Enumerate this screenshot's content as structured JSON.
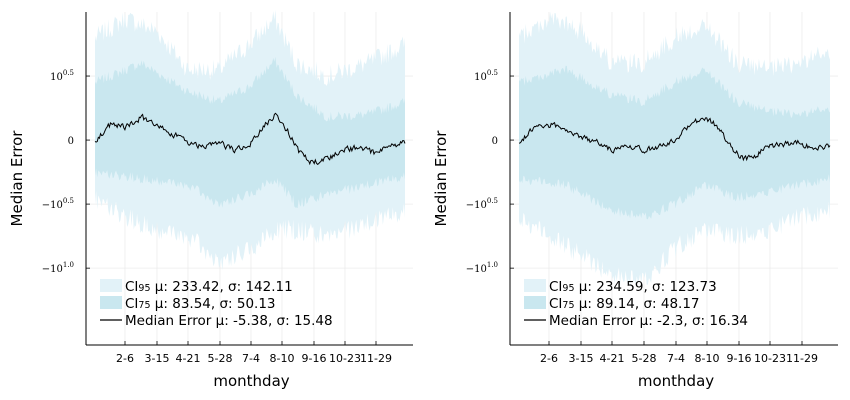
{
  "chart_data": [
    {
      "type": "area",
      "xlabel": "monthday",
      "ylabel": "Median Error",
      "y_scale": "symlog",
      "ylim": [
        -1.6,
        1.0
      ],
      "y_ticks": [
        {
          "value": 0.5,
          "base": "10",
          "exp": "0.5",
          "prefix": ""
        },
        {
          "value": 0,
          "base": "0",
          "exp": "",
          "prefix": ""
        },
        {
          "value": -0.5,
          "base": "10",
          "exp": "0.5",
          "prefix": "−"
        },
        {
          "value": -1.0,
          "base": "10",
          "exp": "1.0",
          "prefix": "−"
        }
      ],
      "x_ticks": [
        "2-6",
        "3-15",
        "4-21",
        "5-28",
        "7-4",
        "8-10",
        "9-16",
        "10-23",
        "11-29"
      ],
      "grid": true,
      "legend_position": "bottom-left",
      "series": [
        {
          "name": "CI",
          "sub": "95",
          "stats": " μ: 233.42, σ: 142.11",
          "color": "#e2f2f8"
        },
        {
          "name": "CI",
          "sub": "75",
          "stats": " μ: 83.54, σ: 50.13",
          "color": "#c9e7ef"
        },
        {
          "name": "Median Error",
          "sub": "",
          "stats": " μ: -5.38, σ: 15.48",
          "color": "#000000"
        }
      ],
      "median_keyframes": [
        [
          0,
          0.0
        ],
        [
          0.05,
          0.12
        ],
        [
          0.1,
          0.1
        ],
        [
          0.15,
          0.18
        ],
        [
          0.2,
          0.1
        ],
        [
          0.25,
          0.05
        ],
        [
          0.3,
          -0.02
        ],
        [
          0.35,
          -0.06
        ],
        [
          0.4,
          -0.02
        ],
        [
          0.45,
          -0.08
        ],
        [
          0.5,
          -0.03
        ],
        [
          0.55,
          0.12
        ],
        [
          0.58,
          0.2
        ],
        [
          0.62,
          0.08
        ],
        [
          0.66,
          -0.1
        ],
        [
          0.7,
          -0.18
        ],
        [
          0.75,
          -0.14
        ],
        [
          0.8,
          -0.08
        ],
        [
          0.85,
          -0.06
        ],
        [
          0.9,
          -0.1
        ],
        [
          0.95,
          -0.05
        ],
        [
          1.0,
          -0.02
        ]
      ],
      "ci75_keyframes": [
        [
          0,
          0.45,
          -0.25
        ],
        [
          0.15,
          0.6,
          -0.3
        ],
        [
          0.3,
          0.38,
          -0.35
        ],
        [
          0.4,
          0.3,
          -0.5
        ],
        [
          0.5,
          0.42,
          -0.42
        ],
        [
          0.58,
          0.62,
          -0.3
        ],
        [
          0.65,
          0.35,
          -0.5
        ],
        [
          0.75,
          0.18,
          -0.42
        ],
        [
          0.88,
          0.2,
          -0.35
        ],
        [
          1.0,
          0.3,
          -0.28
        ]
      ],
      "ci95_keyframes": [
        [
          0,
          0.8,
          -0.45
        ],
        [
          0.1,
          0.95,
          -0.6
        ],
        [
          0.2,
          0.85,
          -0.7
        ],
        [
          0.3,
          0.55,
          -0.75
        ],
        [
          0.4,
          0.55,
          -0.95
        ],
        [
          0.5,
          0.75,
          -0.85
        ],
        [
          0.58,
          0.95,
          -0.7
        ],
        [
          0.65,
          0.6,
          -0.7
        ],
        [
          0.75,
          0.5,
          -0.75
        ],
        [
          0.88,
          0.6,
          -0.65
        ],
        [
          1.0,
          0.75,
          -0.55
        ]
      ]
    },
    {
      "type": "area",
      "xlabel": "monthday",
      "ylabel": "Median Error",
      "y_scale": "symlog",
      "ylim": [
        -1.6,
        1.0
      ],
      "y_ticks": [
        {
          "value": 0.5,
          "base": "10",
          "exp": "0.5",
          "prefix": ""
        },
        {
          "value": 0,
          "base": "0",
          "exp": "",
          "prefix": ""
        },
        {
          "value": -0.5,
          "base": "10",
          "exp": "0.5",
          "prefix": "−"
        },
        {
          "value": -1.0,
          "base": "10",
          "exp": "1.0",
          "prefix": "−"
        }
      ],
      "x_ticks": [
        "2-6",
        "3-15",
        "4-21",
        "5-28",
        "7-4",
        "8-10",
        "9-16",
        "10-23",
        "11-29"
      ],
      "grid": true,
      "legend_position": "bottom-left",
      "series": [
        {
          "name": "CI",
          "sub": "95",
          "stats": " μ: 234.59, σ: 123.73",
          "color": "#e2f2f8"
        },
        {
          "name": "CI",
          "sub": "75",
          "stats": " μ: 89.14, σ: 48.17",
          "color": "#c9e7ef"
        },
        {
          "name": "Median Error",
          "sub": "",
          "stats": " μ: -2.3, σ: 16.34",
          "color": "#000000"
        }
      ],
      "median_keyframes": [
        [
          0,
          -0.02
        ],
        [
          0.05,
          0.1
        ],
        [
          0.1,
          0.12
        ],
        [
          0.15,
          0.08
        ],
        [
          0.2,
          0.02
        ],
        [
          0.25,
          -0.02
        ],
        [
          0.3,
          -0.08
        ],
        [
          0.35,
          -0.05
        ],
        [
          0.4,
          -0.08
        ],
        [
          0.45,
          -0.05
        ],
        [
          0.5,
          0.0
        ],
        [
          0.55,
          0.12
        ],
        [
          0.6,
          0.18
        ],
        [
          0.64,
          0.1
        ],
        [
          0.68,
          -0.05
        ],
        [
          0.72,
          -0.15
        ],
        [
          0.76,
          -0.12
        ],
        [
          0.8,
          -0.05
        ],
        [
          0.85,
          -0.03
        ],
        [
          0.9,
          -0.02
        ],
        [
          0.95,
          -0.06
        ],
        [
          1.0,
          -0.05
        ]
      ],
      "ci75_keyframes": [
        [
          0,
          0.45,
          -0.3
        ],
        [
          0.15,
          0.55,
          -0.35
        ],
        [
          0.3,
          0.35,
          -0.55
        ],
        [
          0.4,
          0.3,
          -0.6
        ],
        [
          0.5,
          0.45,
          -0.5
        ],
        [
          0.6,
          0.55,
          -0.35
        ],
        [
          0.7,
          0.3,
          -0.45
        ],
        [
          0.8,
          0.22,
          -0.4
        ],
        [
          0.9,
          0.2,
          -0.35
        ],
        [
          1.0,
          0.25,
          -0.3
        ]
      ],
      "ci95_keyframes": [
        [
          0,
          0.8,
          -0.6
        ],
        [
          0.1,
          0.95,
          -0.75
        ],
        [
          0.2,
          0.85,
          -0.9
        ],
        [
          0.3,
          0.6,
          -1.05
        ],
        [
          0.4,
          0.6,
          -1.1
        ],
        [
          0.5,
          0.8,
          -0.85
        ],
        [
          0.6,
          0.9,
          -0.7
        ],
        [
          0.7,
          0.6,
          -0.75
        ],
        [
          0.8,
          0.55,
          -0.7
        ],
        [
          0.9,
          0.6,
          -0.6
        ],
        [
          1.0,
          0.7,
          -0.55
        ]
      ]
    }
  ]
}
